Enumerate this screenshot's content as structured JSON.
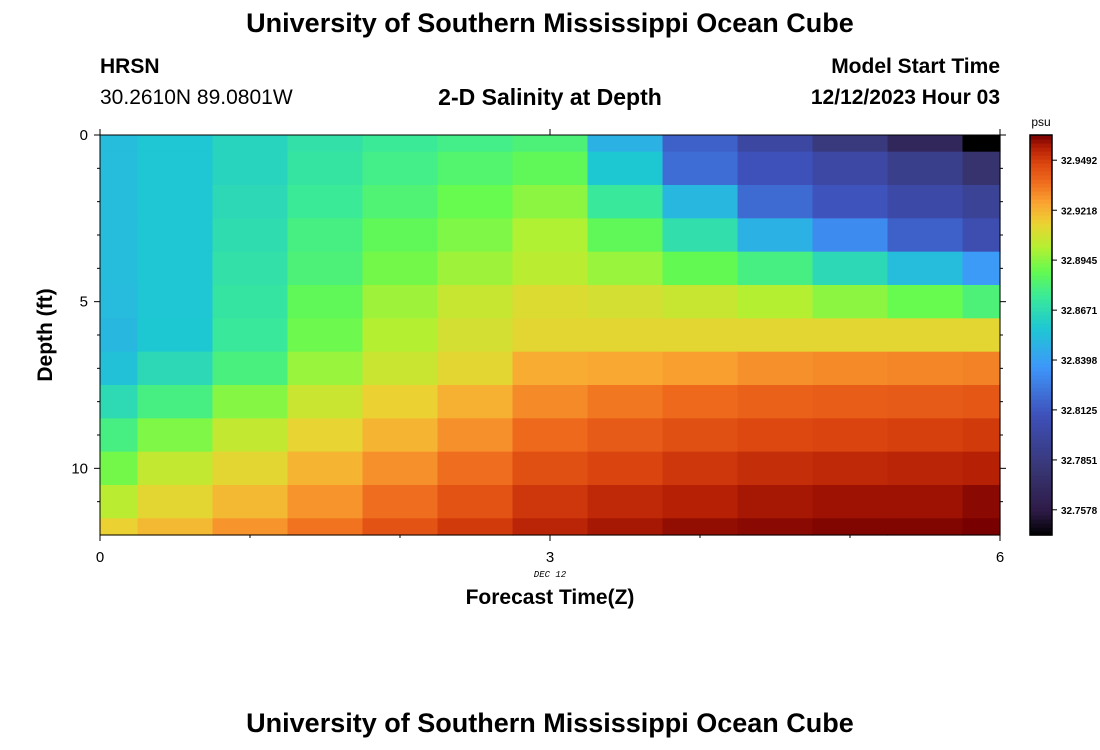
{
  "header": {
    "main_title": "University of Southern Mississippi Ocean Cube",
    "station_name": "HRSN",
    "station_coords": "30.2610N  89.0801W",
    "plot_title": "2-D Salinity at Depth",
    "model_start_label": "Model Start Time",
    "model_start_value": "12/12/2023 Hour 03"
  },
  "footer": {
    "main_title": "University of Southern Mississippi Ocean Cube"
  },
  "chart_data": {
    "type": "heatmap",
    "title": "2-D Salinity at Depth",
    "xlabel": "Forecast Time(Z)",
    "ylabel": "Depth (ft)",
    "x_date_label": "DEC 12",
    "xlim": [
      0,
      6
    ],
    "ylim": [
      0,
      12
    ],
    "x_ticks": [
      0,
      3,
      6
    ],
    "y_ticks": [
      0,
      5,
      10
    ],
    "colorbar": {
      "unit": "psu",
      "range": [
        32.744,
        32.963
      ],
      "tick_values": [
        32.7578,
        32.7851,
        32.8125,
        32.8398,
        32.8671,
        32.8945,
        32.9218,
        32.9492
      ],
      "tick_labels": [
        "32.7578",
        "32.7851",
        "32.8125",
        "32.8398",
        "32.8671",
        "32.8945",
        "32.9218",
        "32.9492"
      ]
    },
    "x_edges": [
      0,
      0.25,
      0.75,
      1.25,
      1.75,
      2.25,
      2.75,
      3.25,
      3.75,
      4.25,
      4.75,
      5.25,
      5.75,
      6
    ],
    "y_edges": [
      0,
      0.5,
      1.5,
      2.5,
      3.5,
      4.5,
      5.5,
      6.5,
      7.5,
      8.5,
      9.5,
      10.5,
      11.5,
      12
    ],
    "values": [
      [
        32.853,
        32.857,
        32.864,
        32.87,
        32.875,
        32.878,
        32.881,
        32.848,
        32.816,
        32.8,
        32.785,
        32.768,
        32.744
      ],
      [
        32.853,
        32.857,
        32.864,
        32.872,
        32.878,
        32.883,
        32.887,
        32.858,
        32.821,
        32.81,
        32.801,
        32.791,
        32.778
      ],
      [
        32.853,
        32.857,
        32.866,
        32.875,
        32.882,
        32.889,
        32.895,
        32.874,
        32.851,
        32.82,
        32.811,
        32.802,
        32.795
      ],
      [
        32.853,
        32.857,
        32.868,
        32.879,
        32.887,
        32.893,
        32.901,
        32.887,
        32.869,
        32.848,
        32.832,
        32.816,
        32.806
      ],
      [
        32.853,
        32.857,
        32.87,
        32.881,
        32.891,
        32.898,
        32.903,
        32.897,
        32.888,
        32.879,
        32.866,
        32.853,
        32.838
      ],
      [
        32.852,
        32.857,
        32.872,
        32.887,
        32.898,
        32.906,
        32.911,
        32.909,
        32.906,
        32.902,
        32.895,
        32.889,
        32.881
      ],
      [
        32.851,
        32.858,
        32.874,
        32.89,
        32.902,
        32.909,
        32.913,
        32.913,
        32.913,
        32.913,
        32.913,
        32.913,
        32.913
      ],
      [
        32.855,
        32.866,
        32.88,
        32.897,
        32.907,
        32.913,
        32.924,
        32.925,
        32.927,
        32.93,
        32.931,
        32.932,
        32.933
      ],
      [
        32.867,
        32.879,
        32.894,
        32.907,
        32.915,
        32.923,
        32.931,
        32.935,
        32.938,
        32.94,
        32.941,
        32.942,
        32.943
      ],
      [
        32.879,
        32.893,
        32.905,
        32.914,
        32.922,
        32.93,
        32.938,
        32.942,
        32.945,
        32.947,
        32.948,
        32.949,
        32.95
      ],
      [
        32.891,
        32.905,
        32.913,
        32.922,
        32.93,
        32.937,
        32.945,
        32.948,
        32.951,
        32.953,
        32.954,
        32.955,
        32.956
      ],
      [
        32.903,
        32.913,
        32.921,
        32.929,
        32.937,
        32.944,
        32.951,
        32.954,
        32.956,
        32.958,
        32.959,
        32.959,
        32.961
      ],
      [
        32.915,
        32.921,
        32.929,
        32.936,
        32.944,
        32.95,
        32.955,
        32.958,
        32.96,
        32.961,
        32.962,
        32.962,
        32.963
      ]
    ]
  }
}
